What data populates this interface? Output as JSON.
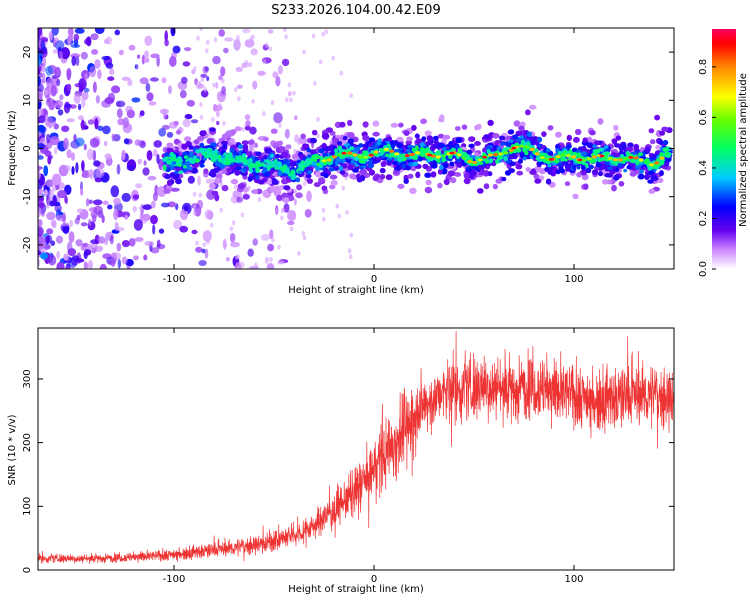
{
  "figure_title": "S233.2026.104.00.42.E09",
  "chart_data": [
    {
      "type": "heatmap",
      "panel": "spectrogram",
      "xlabel": "Height of straight line (km)",
      "ylabel": "Frequency (Hz)",
      "xlim": [
        -168,
        150
      ],
      "ylim": [
        -25,
        25
      ],
      "xticks": [
        -100,
        0,
        100
      ],
      "yticks": [
        -20,
        -10,
        0,
        10,
        20
      ],
      "colorbar": {
        "label": "Normalized spectral amplitude",
        "range": [
          0,
          0.95
        ],
        "ticks": [
          0.0,
          0.2,
          0.4,
          0.6,
          0.8
        ]
      },
      "ridge": {
        "x": [
          -105,
          -90,
          -80,
          -70,
          -60,
          -50,
          -40,
          -30,
          -20,
          -10,
          0,
          10,
          20,
          30,
          40,
          50,
          60,
          70,
          80,
          90,
          100,
          110,
          120,
          130,
          140,
          148
        ],
        "y": [
          -4,
          -2,
          -1,
          -2,
          -3,
          -4,
          -5,
          -3,
          -1,
          -1,
          -1,
          -1,
          -2,
          -1,
          -1,
          -2,
          -2,
          0,
          -1,
          -2,
          -1,
          -2,
          -2,
          -3,
          -3,
          -1
        ],
        "peak_amplitude": 0.9
      },
      "noise_region_x": [
        -168,
        -80
      ]
    },
    {
      "type": "line",
      "panel": "snr",
      "xlabel": "Height of straight line (km)",
      "ylabel": "SNR (10 * v/v)",
      "xlim": [
        -168,
        150
      ],
      "ylim": [
        0,
        380
      ],
      "xticks": [
        -100,
        0,
        100
      ],
      "yticks": [
        0,
        100,
        200,
        300
      ],
      "series": [
        {
          "name": "SNR",
          "color": "#ee3333",
          "x": [
            -168,
            -150,
            -130,
            -110,
            -90,
            -70,
            -60,
            -50,
            -40,
            -30,
            -20,
            -10,
            0,
            10,
            20,
            30,
            40,
            50,
            60,
            70,
            80,
            90,
            100,
            110,
            120,
            130,
            140,
            150
          ],
          "y": [
            18,
            18,
            19,
            22,
            28,
            35,
            40,
            45,
            55,
            70,
            95,
            120,
            160,
            200,
            240,
            270,
            285,
            285,
            290,
            285,
            290,
            280,
            275,
            270,
            270,
            275,
            275,
            270
          ]
        }
      ]
    }
  ]
}
